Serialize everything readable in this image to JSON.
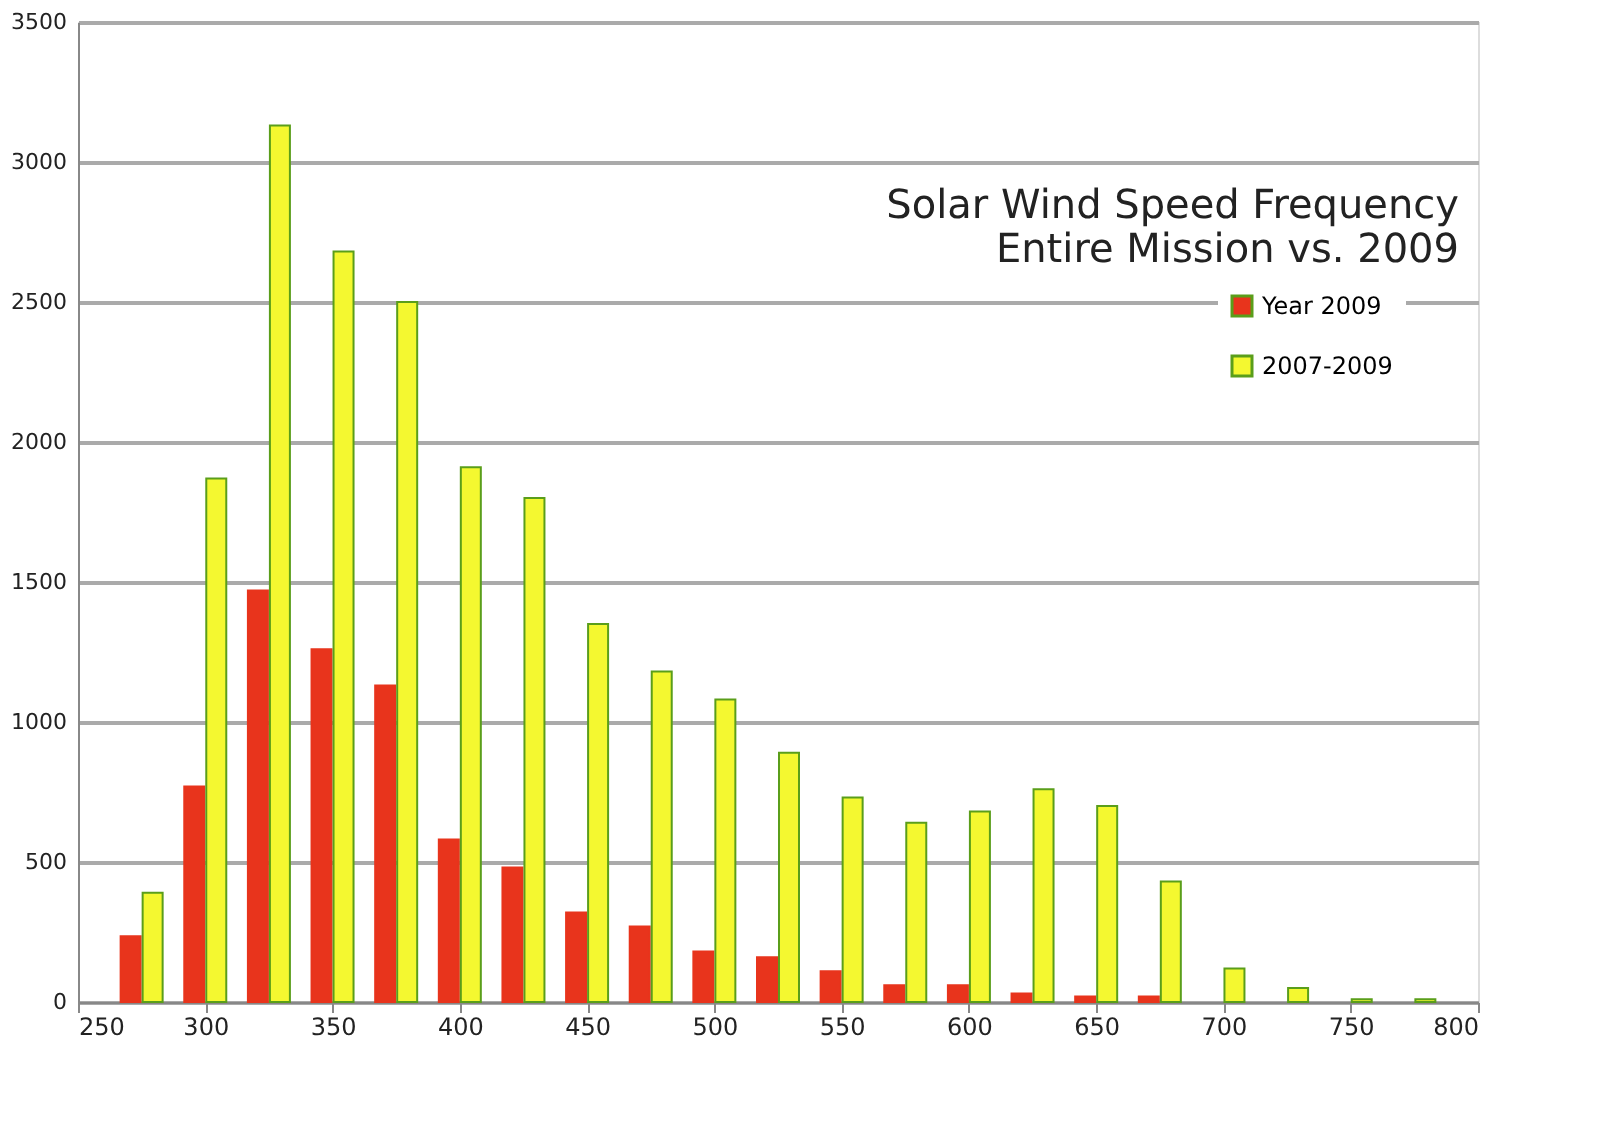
{
  "chart_data": {
    "type": "bar",
    "title": [
      "Solar Wind Speed Frequency",
      "Entire Mission vs. 2009"
    ],
    "x": [
      275,
      300,
      325,
      350,
      375,
      400,
      425,
      450,
      475,
      500,
      525,
      550,
      575,
      600,
      625,
      650,
      675,
      700,
      725,
      750,
      775
    ],
    "series": [
      {
        "name": "Year 2009",
        "color": "#e8341c",
        "values": [
          235,
          770,
          1470,
          1260,
          1130,
          580,
          480,
          320,
          270,
          180,
          160,
          110,
          60,
          60,
          30,
          20,
          20,
          null,
          null,
          null,
          null
        ]
      },
      {
        "name": "2007-2009",
        "color": "#f4f830",
        "values": [
          390,
          1870,
          3130,
          2680,
          2500,
          1910,
          1800,
          1350,
          1180,
          1080,
          890,
          730,
          640,
          680,
          760,
          700,
          430,
          120,
          50,
          10,
          10
        ]
      }
    ],
    "xlim": [
      250,
      800
    ],
    "xticks": [
      250,
      300,
      350,
      400,
      450,
      500,
      550,
      600,
      650,
      700,
      750,
      800
    ],
    "ylim": [
      0,
      3500
    ],
    "yticks": [
      0,
      500,
      1000,
      1500,
      2000,
      2500,
      3000,
      3500
    ],
    "grid": "y",
    "legend": "top right"
  }
}
